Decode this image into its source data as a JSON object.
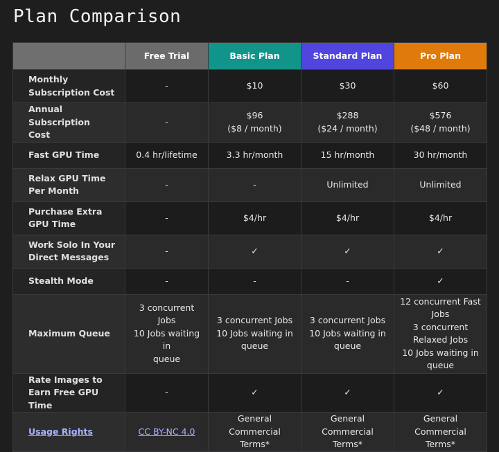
{
  "title": "Plan Comparison",
  "colors": {
    "basic": "#11958a",
    "standard": "#5145e0",
    "pro": "#e07a0b"
  },
  "headers": [
    "Free Trial",
    "Basic Plan",
    "Standard Plan",
    "Pro Plan"
  ],
  "rows": [
    {
      "label": "Monthly\nSubscription Cost",
      "cells": [
        "-",
        "$10",
        "$30",
        "$60"
      ]
    },
    {
      "label": "Annual Subscription\nCost",
      "cells": [
        "-",
        "$96\n($8 / month)",
        "$288\n($24 / month)",
        "$576\n($48 / month)"
      ]
    },
    {
      "label": "Fast GPU Time",
      "cells": [
        "0.4 hr/lifetime",
        "3.3 hr/month",
        "15 hr/month",
        "30 hr/month"
      ]
    },
    {
      "label": "Relax GPU Time\nPer Month",
      "cells": [
        "-",
        "-",
        "Unlimited",
        "Unlimited"
      ]
    },
    {
      "label": "Purchase Extra\nGPU Time",
      "cells": [
        "-",
        "$4/hr",
        "$4/hr",
        "$4/hr"
      ]
    },
    {
      "label": "Work Solo In Your\nDirect Messages",
      "cells": [
        "-",
        "✓",
        "✓",
        "✓"
      ]
    },
    {
      "label": "Stealth Mode",
      "cells": [
        "-",
        "-",
        "-",
        "✓"
      ]
    },
    {
      "label": "Maximum Queue",
      "cells": [
        "3 concurrent Jobs\n10 Jobs waiting in\nqueue",
        "3 concurrent Jobs\n10 Jobs waiting in\nqueue",
        "3 concurrent Jobs\n10 Jobs waiting in\nqueue",
        "12 concurrent Fast\nJobs\n3 concurrent\nRelaxed Jobs\n10 Jobs waiting in\nqueue"
      ]
    },
    {
      "label": "Rate Images to\nEarn Free GPU Time",
      "cells": [
        "-",
        "✓",
        "✓",
        "✓"
      ]
    },
    {
      "label": "Usage Rights",
      "cells": [
        "CC BY-NC 4.0",
        "General Commercial\nTerms*",
        "General Commercial\nTerms*",
        "General Commercial\nTerms*"
      ]
    }
  ]
}
